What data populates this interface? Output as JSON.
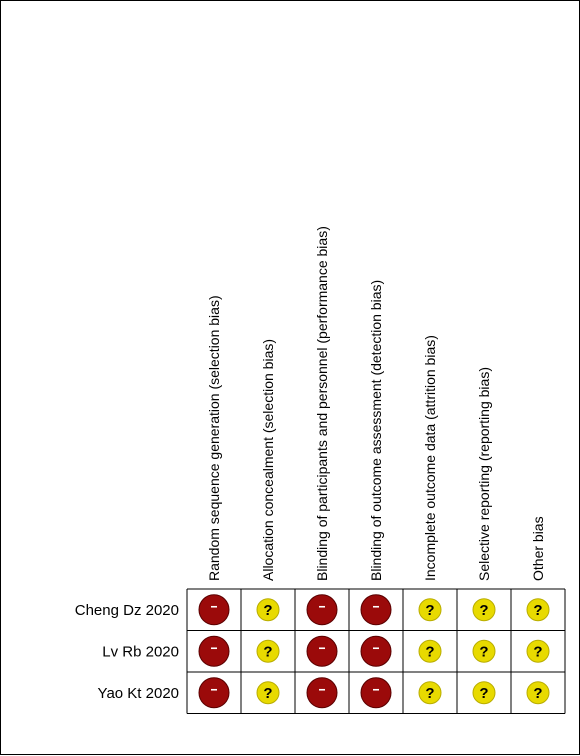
{
  "domains": [
    "Random sequence generation (selection bias)",
    "Allocation concealment (selection bias)",
    "Blinding of participants and personnel (performance bias)",
    "Blinding of outcome assessment (detection bias)",
    "Incomplete outcome data (attrition bias)",
    "Selective reporting (reporting bias)",
    "Other bias"
  ],
  "studies": [
    {
      "name": "Cheng Dz 2020",
      "ratings": [
        "high",
        "unclear",
        "high",
        "high",
        "unclear",
        "unclear",
        "unclear"
      ]
    },
    {
      "name": "Lv Rb 2020",
      "ratings": [
        "high",
        "unclear",
        "high",
        "high",
        "unclear",
        "unclear",
        "unclear"
      ]
    },
    {
      "name": "Yao Kt 2020",
      "ratings": [
        "high",
        "unclear",
        "high",
        "high",
        "unclear",
        "unclear",
        "unclear"
      ]
    }
  ],
  "legend_symbols": {
    "high": {
      "symbol": "−",
      "fill": "#9B0A0A",
      "text_color": "#ffffff",
      "icon": "high-risk-icon"
    },
    "unclear": {
      "symbol": "?",
      "fill": "#E8DA00",
      "text_color": "#000000",
      "icon": "unclear-risk-icon"
    }
  },
  "colors": {
    "grid": "#000000",
    "background": "#ffffff"
  }
}
